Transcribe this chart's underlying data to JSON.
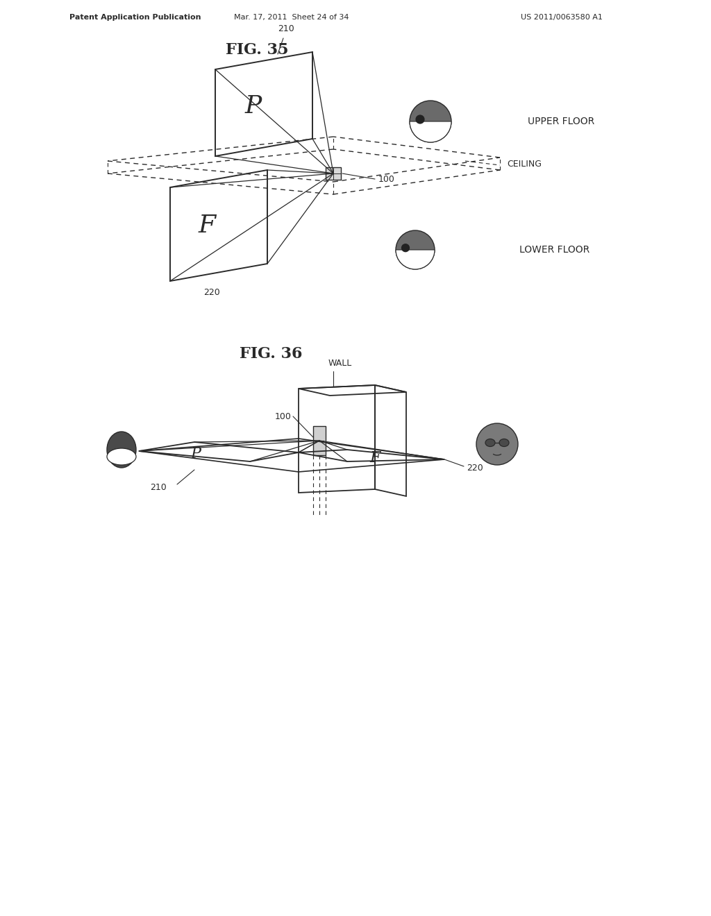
{
  "bg_color": "#ffffff",
  "line_color": "#2a2a2a",
  "header_left": "Patent Application Publication",
  "header_mid": "Mar. 17, 2011  Sheet 24 of 34",
  "header_right": "US 2011/0063580 A1",
  "fig35_title": "FIG. 35",
  "fig36_title": "FIG. 36",
  "upper_floor": "UPPER FLOOR",
  "lower_floor": "LOWER FLOOR",
  "ceiling_label": "CEILING",
  "wall_label": "WALL",
  "lw_main": 1.3,
  "lw_thin": 0.9,
  "lw_dash": 0.9
}
